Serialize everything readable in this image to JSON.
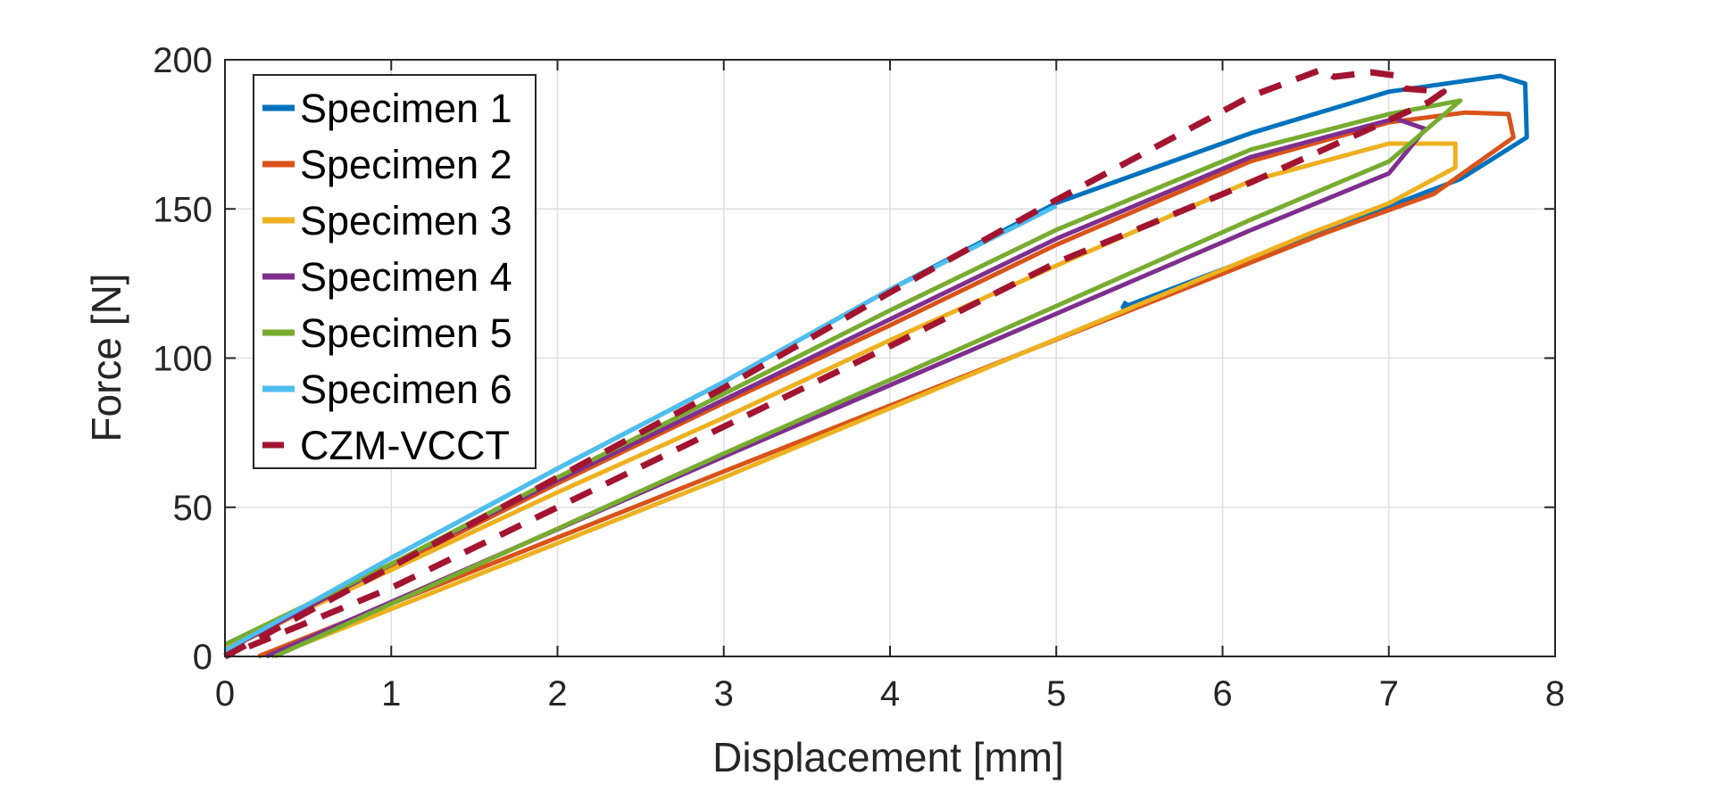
{
  "chart_data": {
    "type": "line",
    "title": "",
    "xlabel": "Displacement [mm]",
    "ylabel": "Force [N]",
    "xlim": [
      0,
      8
    ],
    "ylim": [
      0,
      200
    ],
    "xticks": [
      0,
      1,
      2,
      3,
      4,
      5,
      6,
      7,
      8
    ],
    "yticks": [
      0,
      50,
      100,
      150,
      200
    ],
    "grid": true,
    "legend_placement": "top-left",
    "series": [
      {
        "name": "Specimen 1",
        "color": "#0072BD",
        "dash": false,
        "x": [
          0,
          1,
          2,
          3,
          4,
          5,
          6.17,
          7,
          7.67,
          7.82,
          7.83,
          7.43,
          5.4,
          5.42
        ],
        "y": [
          2,
          33,
          63,
          92,
          123,
          152,
          175.4,
          189.3,
          194.6,
          192,
          174,
          160,
          117,
          119
        ]
      },
      {
        "name": "Specimen 2",
        "color": "#D95319",
        "dash": false,
        "x": [
          0,
          1,
          2,
          3,
          4,
          5,
          6.17,
          7,
          7.46,
          7.72,
          7.75,
          7.27,
          6.62,
          3,
          0.2
        ],
        "y": [
          2,
          30,
          58,
          85,
          111,
          138,
          166,
          179,
          182.3,
          181.8,
          174,
          155,
          142,
          62,
          0
        ]
      },
      {
        "name": "Specimen 3",
        "color": "#EDB120",
        "dash": false,
        "x": [
          0,
          1,
          2,
          3,
          4,
          5,
          6.17,
          7,
          7.4,
          7.4,
          7,
          6.53,
          3,
          0.28
        ],
        "y": [
          3,
          29,
          55,
          80,
          106,
          131,
          159.4,
          171.9,
          171.9,
          163.9,
          151.9,
          141.9,
          60,
          0
        ]
      },
      {
        "name": "Specimen 4",
        "color": "#7E2F8E",
        "dash": false,
        "x": [
          0,
          1,
          2,
          3,
          4,
          5,
          6.17,
          7.04,
          7.22,
          7,
          6.17,
          3,
          0.25
        ],
        "y": [
          2,
          31,
          59,
          86,
          113,
          140,
          167.4,
          180.3,
          176.8,
          161.9,
          142.9,
          67,
          0
        ]
      },
      {
        "name": "Specimen 5",
        "color": "#77AC30",
        "dash": false,
        "x": [
          0,
          1,
          2,
          3,
          4,
          5,
          6.17,
          7,
          7.43,
          7,
          6.17,
          3,
          0.3
        ],
        "y": [
          4,
          31,
          60,
          88,
          116,
          143,
          169.9,
          181.8,
          186.3,
          165.9,
          146.4,
          68,
          0
        ]
      },
      {
        "name": "Specimen 6",
        "color": "#4DBEEE",
        "dash": false,
        "x": [
          0,
          1,
          2,
          3,
          4,
          5
        ],
        "y": [
          2,
          33,
          63,
          92,
          123,
          151
        ]
      },
      {
        "name": "CZM-VCCT",
        "color": "#A2142F",
        "dash": true,
        "x": [
          0,
          1,
          2,
          3,
          4,
          5,
          6.17,
          6.6,
          6.67,
          6.89,
          7.03,
          7.1,
          7.33,
          7.24,
          6.17,
          5,
          4,
          3,
          2,
          1,
          0
        ],
        "y": [
          0,
          30,
          60,
          90,
          122,
          153,
          187.8,
          196.8,
          194.3,
          195.8,
          194.8,
          190.3,
          189.3,
          185.8,
          158.9,
          132,
          104,
          77,
          50,
          23,
          0
        ]
      }
    ]
  }
}
